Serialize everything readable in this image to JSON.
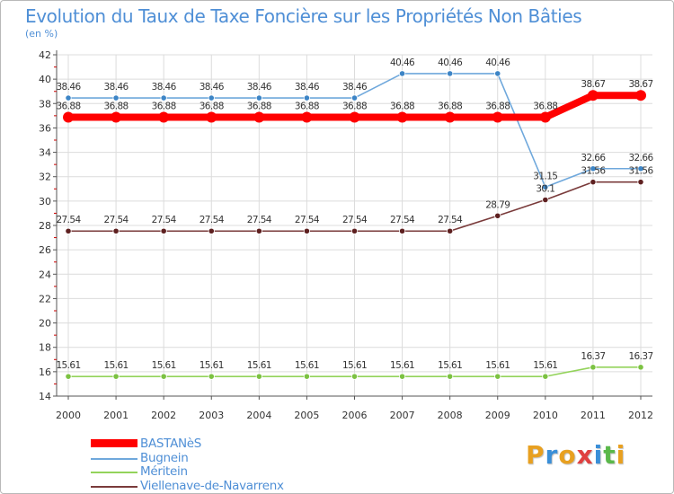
{
  "title": "Evolution du Taux de Taxe Foncière sur les Propriétés Non Bâties",
  "unit_label": "(en %)",
  "brand": {
    "text": "Proxiti",
    "letters": [
      "P",
      "r",
      "o",
      "x",
      "i",
      "t",
      "i"
    ],
    "colors": [
      "#e8a020",
      "#3a8fd8",
      "#e8a020",
      "#e04040",
      "#3a8fd8",
      "#5ab84a",
      "#e8a020"
    ]
  },
  "chart_data": {
    "type": "line",
    "title": "Evolution du Taux de Taxe Foncière sur les Propriétés Non Bâties",
    "ylabel": "(en %)",
    "xlabel": "",
    "x": [
      "2000",
      "2001",
      "2002",
      "2003",
      "2004",
      "2005",
      "2006",
      "2007",
      "2008",
      "2009",
      "2010",
      "2011",
      "2012"
    ],
    "ylim": [
      14,
      42
    ],
    "yticks": [
      14,
      16,
      18,
      20,
      22,
      24,
      26,
      28,
      30,
      32,
      34,
      36,
      38,
      40,
      42
    ],
    "grid": true,
    "legend_position": "bottom-left",
    "series": [
      {
        "name": "BASTANèS",
        "color": "#ff0000",
        "marker": "#ff0000",
        "bold": true,
        "values": [
          36.88,
          36.88,
          36.88,
          36.88,
          36.88,
          36.88,
          36.88,
          36.88,
          36.88,
          36.88,
          36.88,
          38.67,
          38.67
        ],
        "labels": [
          "36.88",
          "36.88",
          "36.88",
          "36.88",
          "36.88",
          "36.88",
          "36.88",
          "36.88",
          "36.88",
          "36.88",
          "36.88",
          "38.67",
          "38.67"
        ]
      },
      {
        "name": "Bugnein",
        "color": "#6fa8dc",
        "marker": "#3d85c6",
        "bold": false,
        "values": [
          38.46,
          38.46,
          38.46,
          38.46,
          38.46,
          38.46,
          38.46,
          40.46,
          40.46,
          40.46,
          31.15,
          32.66,
          32.66
        ],
        "labels": [
          "38.46",
          "38.46",
          "38.46",
          "38.46",
          "38.46",
          "38.46",
          "38.46",
          "40.46",
          "40.46",
          "40.46",
          "31.15",
          "32.66",
          "32.66"
        ]
      },
      {
        "name": "Méritein",
        "color": "#93d35a",
        "marker": "#7cc242",
        "bold": false,
        "values": [
          15.61,
          15.61,
          15.61,
          15.61,
          15.61,
          15.61,
          15.61,
          15.61,
          15.61,
          15.61,
          15.61,
          16.37,
          16.37
        ],
        "labels": [
          "15.61",
          "15.61",
          "15.61",
          "15.61",
          "15.61",
          "15.61",
          "15.61",
          "15.61",
          "15.61",
          "15.61",
          "15.61",
          "16.37",
          "16.37"
        ]
      },
      {
        "name": "Viellenave-de-Navarrenx",
        "color": "#7a3b3b",
        "marker": "#5e2020",
        "bold": false,
        "values": [
          27.54,
          27.54,
          27.54,
          27.54,
          27.54,
          27.54,
          27.54,
          27.54,
          27.54,
          28.79,
          30.1,
          31.56,
          31.56
        ],
        "labels": [
          "27.54",
          "27.54",
          "27.54",
          "27.54",
          "27.54",
          "27.54",
          "27.54",
          "27.54",
          "27.54",
          "28.79",
          "30.1",
          "31.56",
          "31.56"
        ]
      }
    ]
  }
}
